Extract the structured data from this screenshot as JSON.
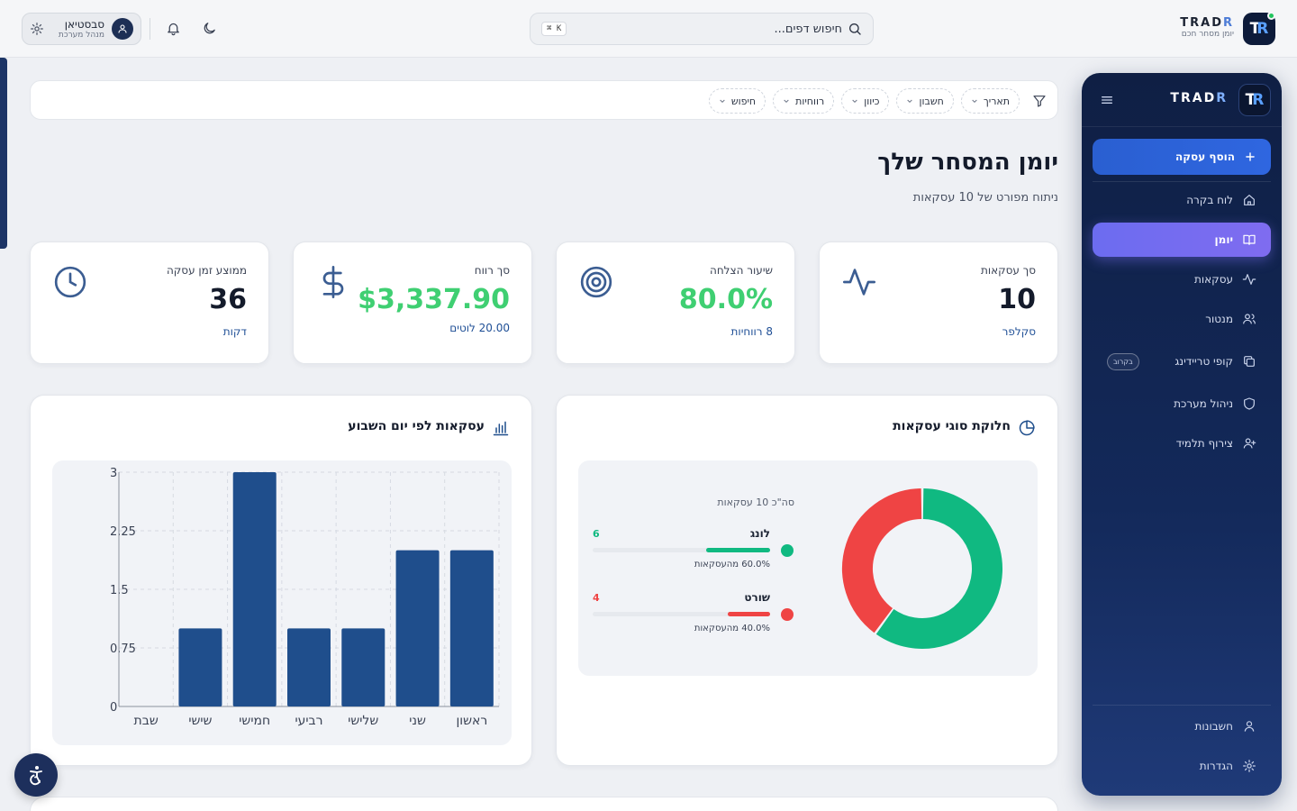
{
  "brand": {
    "name_main": "TRAD",
    "name_accent": "R",
    "tagline": "יומן מסחר חכם",
    "logo_main": "T",
    "logo_accent": "R"
  },
  "search": {
    "placeholder": "חיפוש דפים...",
    "shortcut": "⌘ K"
  },
  "user": {
    "name": "סבסטיאן",
    "role": "מנהל מערכת"
  },
  "sidebar": {
    "add_label": "הוסף עסקה",
    "items": [
      {
        "label": "לוח בקרה",
        "icon": "home-icon",
        "active": false
      },
      {
        "label": "יומן",
        "icon": "book-icon",
        "active": true
      },
      {
        "label": "עסקאות",
        "icon": "activity-icon",
        "active": false
      },
      {
        "label": "מנטור",
        "icon": "users-icon",
        "active": false
      },
      {
        "label": "קופי טריידינג",
        "icon": "copy-icon",
        "active": false,
        "badge": "בקרוב"
      },
      {
        "label": "ניהול מערכת",
        "icon": "shield-icon",
        "active": false
      },
      {
        "label": "צירוף תלמיד",
        "icon": "user-plus-icon",
        "active": false
      }
    ],
    "bottom": [
      {
        "label": "חשבונות",
        "icon": "user-icon"
      },
      {
        "label": "הגדרות",
        "icon": "gear-icon"
      }
    ]
  },
  "filters": [
    "תאריך",
    "חשבון",
    "כיוון",
    "רווחיות",
    "חיפוש"
  ],
  "page": {
    "title": "יומן המסחר שלך",
    "subtitle": "ניתוח מפורט של 10 עסקאות"
  },
  "stats": [
    {
      "title": "סך עסקאות",
      "value": "10",
      "sub": "סקלפר",
      "icon": "activity-icon"
    },
    {
      "title": "שיעור הצלחה",
      "value": "80.0%",
      "sub": "8 רווחיות",
      "icon": "target-icon"
    },
    {
      "title": "סך רווח",
      "value": "$3,337.90",
      "sub": "20.00 לוטים",
      "icon": "dollar-icon"
    },
    {
      "title": "ממוצע זמן עסקה",
      "value": "36",
      "sub": "דקות",
      "icon": "clock-icon"
    }
  ],
  "colors": {
    "long": "#10b981",
    "short": "#ef4444",
    "bar": "#1f4e8c",
    "accent": "#2a5fd1"
  },
  "chart_data": [
    {
      "type": "pie",
      "title": "חלוקת סוגי עסקאות",
      "total_label": "סה\"כ 10 עסקאות",
      "slices": [
        {
          "name": "לונג",
          "value": 6,
          "percent_label": "60.0% מהעסקאות"
        },
        {
          "name": "שורט",
          "value": 4,
          "percent_label": "40.0% מהעסקאות"
        }
      ]
    },
    {
      "type": "bar",
      "title": "עסקאות לפי יום השבוע",
      "categories": [
        "ראשון",
        "שני",
        "שלישי",
        "רביעי",
        "חמישי",
        "שישי",
        "שבת"
      ],
      "values": [
        2,
        2,
        1,
        1,
        3,
        1,
        0
      ],
      "ylim": [
        0,
        3
      ],
      "yticks": [
        "0",
        "0.75",
        "1.5",
        "2.25",
        "3"
      ],
      "grid": true
    }
  ]
}
